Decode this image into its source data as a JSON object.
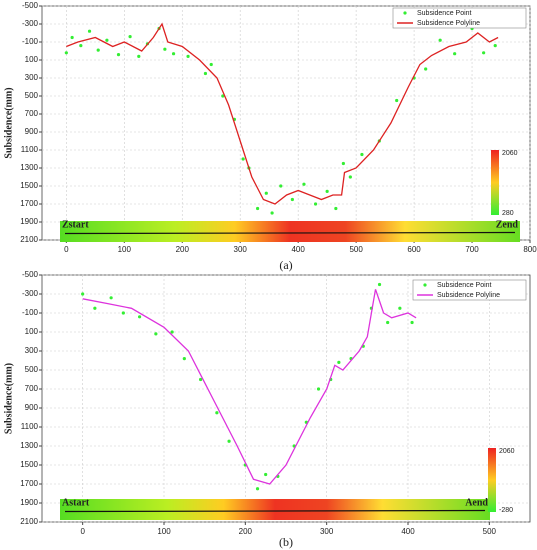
{
  "chart_data": [
    {
      "type": "line",
      "caption": "(a)",
      "ylabel": "Subsidence(mm)",
      "y_inverted": true,
      "grid": true,
      "legend": "upper right",
      "xlim": [
        -42,
        800
      ],
      "ylim": [
        -500,
        2100
      ],
      "xticks": [
        0,
        100,
        200,
        300,
        400,
        500,
        600,
        700,
        800
      ],
      "yticks": [
        -500,
        -300,
        -100,
        100,
        300,
        500,
        700,
        900,
        1100,
        1300,
        1500,
        1700,
        1900,
        2100
      ],
      "start_label": "Zstart",
      "end_label": "Zend",
      "colorbar_ticks": [
        2060,
        280
      ],
      "series": [
        {
          "name": "Subsidence Point",
          "type": "scatter",
          "color": "#33ee33",
          "x": [
            0,
            10,
            25,
            40,
            55,
            70,
            90,
            110,
            125,
            140,
            160,
            170,
            185,
            210,
            240,
            250,
            270,
            290,
            305,
            315,
            330,
            345,
            355,
            370,
            390,
            410,
            430,
            450,
            465,
            478,
            490,
            510,
            540,
            570,
            600,
            620,
            645,
            670,
            700,
            720,
            740
          ],
          "values": [
            20,
            -150,
            -60,
            -220,
            -10,
            -120,
            40,
            -160,
            60,
            -80,
            -250,
            -20,
            30,
            60,
            250,
            150,
            500,
            760,
            1200,
            1300,
            1750,
            1580,
            1800,
            1500,
            1650,
            1480,
            1700,
            1560,
            1750,
            1250,
            1400,
            1150,
            1000,
            550,
            300,
            200,
            -120,
            30,
            -250,
            20,
            -60
          ]
        },
        {
          "name": "Subsidence Polyline",
          "type": "line",
          "color": "#dd2222",
          "x": [
            0,
            20,
            50,
            80,
            100,
            130,
            150,
            165,
            175,
            200,
            230,
            260,
            280,
            300,
            320,
            340,
            360,
            380,
            400,
            420,
            440,
            460,
            475,
            480,
            500,
            530,
            560,
            590,
            610,
            630,
            660,
            690,
            710,
            730,
            745
          ],
          "values": [
            -50,
            -100,
            -150,
            -50,
            -100,
            0,
            -150,
            -300,
            -100,
            -50,
            100,
            300,
            600,
            1000,
            1400,
            1650,
            1700,
            1600,
            1550,
            1600,
            1650,
            1600,
            1600,
            1350,
            1300,
            1100,
            800,
            400,
            150,
            50,
            -50,
            -100,
            -200,
            -100,
            -150
          ]
        }
      ]
    },
    {
      "type": "line",
      "caption": "(b)",
      "ylabel": "Subsidence(mm)",
      "y_inverted": true,
      "grid": true,
      "legend": "upper right",
      "xlim": [
        -50,
        550
      ],
      "ylim": [
        -500,
        2100
      ],
      "xticks": [
        0,
        100,
        200,
        300,
        400,
        500
      ],
      "yticks": [
        -500,
        -300,
        -100,
        100,
        300,
        500,
        700,
        900,
        1100,
        1300,
        1500,
        1700,
        1900,
        2100
      ],
      "start_label": "Astart",
      "end_label": "Aend",
      "colorbar_ticks": [
        2060,
        -280
      ],
      "series": [
        {
          "name": "Subsidence Point",
          "type": "scatter",
          "color": "#33ee33",
          "x": [
            0,
            15,
            35,
            50,
            70,
            90,
            110,
            125,
            145,
            165,
            180,
            200,
            215,
            225,
            240,
            260,
            275,
            290,
            305,
            315,
            330,
            345,
            355,
            365,
            375,
            390,
            405
          ],
          "values": [
            -300,
            -150,
            -260,
            -100,
            -60,
            120,
            100,
            380,
            600,
            950,
            1250,
            1500,
            1750,
            1600,
            1620,
            1300,
            1050,
            700,
            600,
            420,
            380,
            250,
            -150,
            -400,
            0,
            -150,
            0
          ]
        },
        {
          "name": "Subsidence Polyline",
          "type": "line",
          "color": "#dd33dd",
          "x": [
            0,
            30,
            60,
            100,
            130,
            160,
            190,
            210,
            230,
            250,
            280,
            300,
            310,
            320,
            340,
            350,
            360,
            370,
            380,
            400,
            410
          ],
          "values": [
            -250,
            -200,
            -150,
            50,
            300,
            800,
            1300,
            1650,
            1700,
            1500,
            1000,
            700,
            450,
            500,
            300,
            150,
            -350,
            -100,
            -50,
            -100,
            -50
          ]
        }
      ]
    }
  ]
}
